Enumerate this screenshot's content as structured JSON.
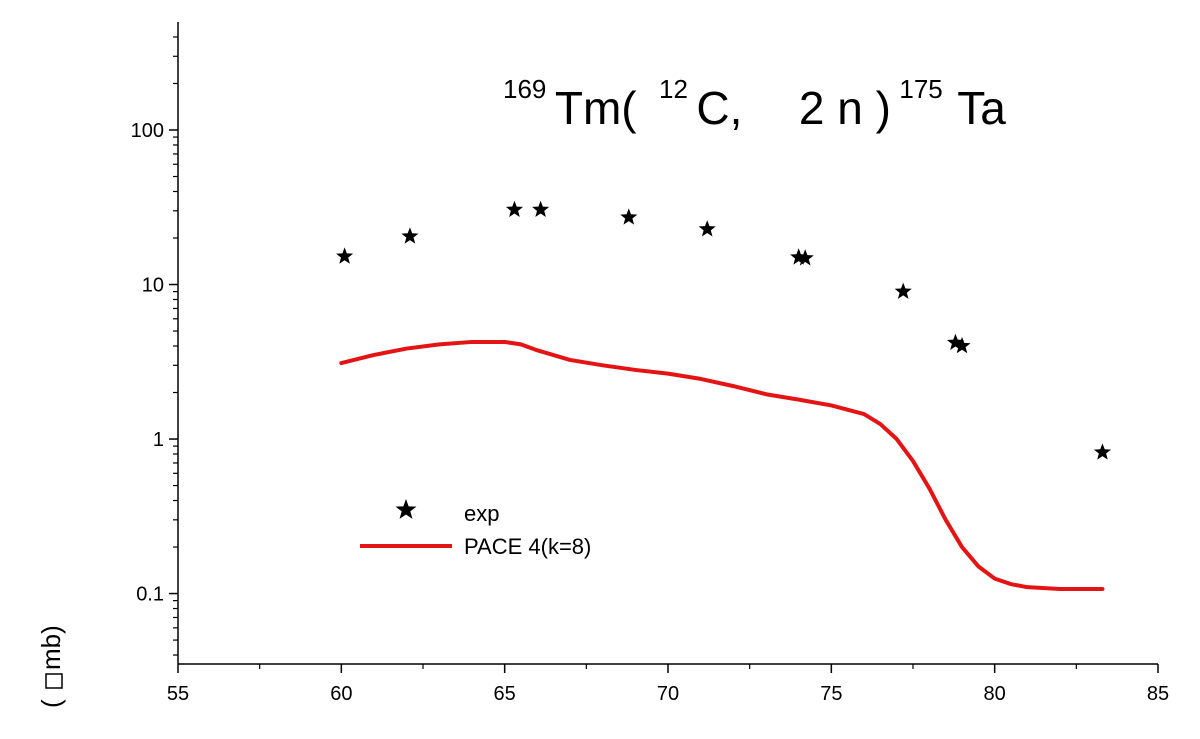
{
  "chart_data": {
    "type": "scatter",
    "title": {
      "tm_mass": "169",
      "tm": "Tm(",
      "c_mass": "12",
      "c": "C,",
      "n": "2 n )",
      "ta_mass": "175",
      "ta": "Ta"
    },
    "ylabel": "mb)",
    "ylabel_prefix": "(",
    "y_scale": "log",
    "xlim": [
      55,
      85
    ],
    "ylim": [
      0.035,
      500
    ],
    "x_ticks": [
      55,
      60,
      65,
      70,
      75,
      80,
      85
    ],
    "x_tick_labels": [
      "55",
      "60",
      "65",
      "70",
      "75",
      "80",
      "85"
    ],
    "y_ticks": [
      0.1,
      1,
      10,
      100
    ],
    "y_tick_labels": [
      "0.1",
      "1",
      "10",
      "100"
    ],
    "grid": false,
    "legend_position": "lower-left",
    "series": [
      {
        "name": "exp",
        "kind": "scatter",
        "marker": "star",
        "color": "#000000",
        "points": [
          {
            "x": 60.1,
            "y": 15.2
          },
          {
            "x": 62.1,
            "y": 20.5
          },
          {
            "x": 65.3,
            "y": 30.5
          },
          {
            "x": 66.1,
            "y": 30.5
          },
          {
            "x": 68.8,
            "y": 27.2
          },
          {
            "x": 71.2,
            "y": 22.8
          },
          {
            "x": 74.0,
            "y": 15.0
          },
          {
            "x": 74.2,
            "y": 14.8
          },
          {
            "x": 77.2,
            "y": 9.0
          },
          {
            "x": 78.8,
            "y": 4.2
          },
          {
            "x": 79.0,
            "y": 4.0
          },
          {
            "x": 83.3,
            "y": 0.82
          }
        ]
      },
      {
        "name": "PACE 4(k=8)",
        "kind": "line",
        "color": "#e41414",
        "points": [
          {
            "x": 60.0,
            "y": 3.1
          },
          {
            "x": 61.0,
            "y": 3.5
          },
          {
            "x": 62.0,
            "y": 3.85
          },
          {
            "x": 63.0,
            "y": 4.1
          },
          {
            "x": 64.0,
            "y": 4.25
          },
          {
            "x": 65.0,
            "y": 4.25
          },
          {
            "x": 65.5,
            "y": 4.1
          },
          {
            "x": 66.0,
            "y": 3.75
          },
          {
            "x": 67.0,
            "y": 3.25
          },
          {
            "x": 68.0,
            "y": 3.0
          },
          {
            "x": 69.0,
            "y": 2.8
          },
          {
            "x": 70.0,
            "y": 2.65
          },
          {
            "x": 71.0,
            "y": 2.45
          },
          {
            "x": 72.0,
            "y": 2.2
          },
          {
            "x": 73.0,
            "y": 1.95
          },
          {
            "x": 74.0,
            "y": 1.8
          },
          {
            "x": 75.0,
            "y": 1.65
          },
          {
            "x": 76.0,
            "y": 1.45
          },
          {
            "x": 76.5,
            "y": 1.25
          },
          {
            "x": 77.0,
            "y": 1.0
          },
          {
            "x": 77.5,
            "y": 0.72
          },
          {
            "x": 78.0,
            "y": 0.48
          },
          {
            "x": 78.5,
            "y": 0.3
          },
          {
            "x": 79.0,
            "y": 0.2
          },
          {
            "x": 79.5,
            "y": 0.15
          },
          {
            "x": 80.0,
            "y": 0.125
          },
          {
            "x": 80.5,
            "y": 0.115
          },
          {
            "x": 81.0,
            "y": 0.11
          },
          {
            "x": 82.0,
            "y": 0.107
          },
          {
            "x": 83.3,
            "y": 0.107
          }
        ]
      }
    ]
  }
}
